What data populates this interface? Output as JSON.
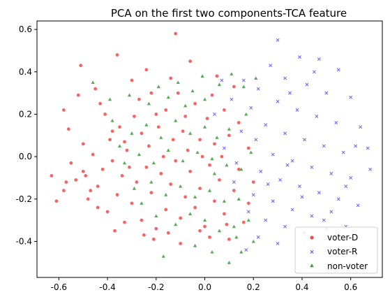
{
  "chart_data": {
    "type": "scatter",
    "title": "PCA on the first two components-TCA feature",
    "xlabel": "",
    "ylabel": "",
    "xlim": [
      -0.69,
      0.73
    ],
    "ylim": [
      -0.57,
      0.64
    ],
    "xticks": [
      "-0.6",
      "-0.4",
      "-0.2",
      "0.0",
      "0.2",
      "0.4",
      "0.6"
    ],
    "yticks": [
      "-0.4",
      "-0.2",
      "0.0",
      "0.2",
      "0.4",
      "0.6"
    ],
    "xtick_values": [
      -0.6,
      -0.4,
      -0.2,
      0.0,
      0.2,
      0.4,
      0.6
    ],
    "ytick_values": [
      -0.4,
      -0.2,
      0.0,
      0.2,
      0.4,
      0.6
    ],
    "grid": false,
    "legend_position": "lower-right",
    "series": [
      {
        "name": "voter-D",
        "marker": "circle",
        "color": "#f44a4a",
        "points": [
          [
            -0.51,
            0.43
          ],
          [
            -0.36,
            0.48
          ],
          [
            -0.12,
            0.58
          ],
          [
            -0.3,
            0.36
          ],
          [
            -0.45,
            0.32
          ],
          [
            -0.58,
            0.22
          ],
          [
            -0.56,
            0.13
          ],
          [
            -0.52,
            0.29
          ],
          [
            -0.41,
            0.2
          ],
          [
            -0.38,
            0.12
          ],
          [
            -0.33,
            0.07
          ],
          [
            -0.29,
            0.19
          ],
          [
            -0.27,
            0.27
          ],
          [
            -0.24,
            0.41
          ],
          [
            -0.22,
            0.3
          ],
          [
            -0.19,
            0.14
          ],
          [
            -0.16,
            0.22
          ],
          [
            -0.14,
            0.37
          ],
          [
            -0.11,
            0.3
          ],
          [
            -0.09,
            0.12
          ],
          [
            -0.06,
            0.45
          ],
          [
            -0.04,
            0.25
          ],
          [
            -0.02,
            0.08
          ],
          [
            0.01,
            0.18
          ],
          [
            0.03,
            0.29
          ],
          [
            0.05,
            0.38
          ],
          [
            0.08,
            0.22
          ],
          [
            0.1,
            0.1
          ],
          [
            0.12,
            0.33
          ],
          [
            -0.63,
            -0.09
          ],
          [
            -0.61,
            -0.21
          ],
          [
            -0.58,
            -0.16
          ],
          [
            -0.55,
            -0.03
          ],
          [
            -0.53,
            -0.11
          ],
          [
            -0.5,
            -0.07
          ],
          [
            -0.48,
            -0.2
          ],
          [
            -0.46,
            0.01
          ],
          [
            -0.44,
            -0.14
          ],
          [
            -0.42,
            -0.06
          ],
          [
            -0.4,
            -0.26
          ],
          [
            -0.38,
            -0.02
          ],
          [
            -0.36,
            -0.18
          ],
          [
            -0.34,
            -0.09
          ],
          [
            -0.32,
            0.03
          ],
          [
            -0.3,
            -0.22
          ],
          [
            -0.28,
            -0.12
          ],
          [
            -0.26,
            -0.3
          ],
          [
            -0.24,
            -0.05
          ],
          [
            -0.22,
            -0.17
          ],
          [
            -0.2,
            -0.34
          ],
          [
            -0.18,
            -0.08
          ],
          [
            -0.16,
            -0.25
          ],
          [
            -0.14,
            -0.13
          ],
          [
            -0.12,
            -0.02
          ],
          [
            -0.1,
            -0.29
          ],
          [
            -0.08,
            -0.19
          ],
          [
            -0.06,
            -0.07
          ],
          [
            -0.04,
            -0.24
          ],
          [
            -0.02,
            -0.15
          ],
          [
            0.0,
            -0.33
          ],
          [
            0.02,
            -0.04
          ],
          [
            0.04,
            -0.21
          ],
          [
            0.06,
            -0.11
          ],
          [
            0.08,
            -0.27
          ],
          [
            0.1,
            -0.39
          ],
          [
            0.12,
            -0.16
          ],
          [
            0.14,
            -0.06
          ],
          [
            0.16,
            -0.31
          ],
          [
            0.18,
            -0.22
          ],
          [
            0.2,
            -0.12
          ],
          [
            -0.44,
            -0.24
          ],
          [
            -0.37,
            -0.35
          ],
          [
            -0.33,
            -0.31
          ],
          [
            -0.25,
            -0.37
          ],
          [
            -0.21,
            -0.39
          ],
          [
            -0.15,
            -0.36
          ],
          [
            -0.1,
            -0.41
          ],
          [
            -0.02,
            -0.35
          ],
          [
            0.02,
            -0.38
          ],
          [
            0.09,
            -0.32
          ],
          [
            -0.57,
            -0.12
          ],
          [
            -0.47,
            -0.16
          ],
          [
            -0.39,
            0.08
          ],
          [
            -0.35,
            0.14
          ],
          [
            -0.31,
            -0.05
          ],
          [
            -0.23,
            0.05
          ],
          [
            -0.17,
            0.0
          ],
          [
            -0.13,
            0.08
          ],
          [
            -0.07,
            0.03
          ],
          [
            -0.01,
            0.0
          ],
          [
            0.04,
            0.06
          ],
          [
            0.07,
            0.0
          ],
          [
            -0.5,
            0.06
          ],
          [
            -0.43,
            0.25
          ],
          [
            -0.26,
            0.11
          ],
          [
            -0.2,
            0.2
          ],
          [
            -0.08,
            0.19
          ],
          [
            0.14,
            0.16
          ],
          [
            0.18,
            0.04
          ],
          [
            -0.49,
            -0.09
          ]
        ]
      },
      {
        "name": "voter-R",
        "marker": "x",
        "color": "#4a4af4",
        "points": [
          [
            0.3,
            0.55
          ],
          [
            0.39,
            0.47
          ],
          [
            0.47,
            0.46
          ],
          [
            0.55,
            0.41
          ],
          [
            0.27,
            0.43
          ],
          [
            0.33,
            0.37
          ],
          [
            0.42,
            0.34
          ],
          [
            0.5,
            0.3
          ],
          [
            0.6,
            0.28
          ],
          [
            0.22,
            0.32
          ],
          [
            0.3,
            0.26
          ],
          [
            0.38,
            0.22
          ],
          [
            0.46,
            0.19
          ],
          [
            0.54,
            0.16
          ],
          [
            0.64,
            0.14
          ],
          [
            0.25,
            0.15
          ],
          [
            0.33,
            0.11
          ],
          [
            0.41,
            0.08
          ],
          [
            0.49,
            0.05
          ],
          [
            0.57,
            0.02
          ],
          [
            0.67,
            0.04
          ],
          [
            0.28,
            0.01
          ],
          [
            0.36,
            -0.02
          ],
          [
            0.44,
            -0.05
          ],
          [
            0.52,
            -0.08
          ],
          [
            0.6,
            -0.1
          ],
          [
            0.68,
            -0.06
          ],
          [
            0.23,
            -0.07
          ],
          [
            0.31,
            -0.11
          ],
          [
            0.39,
            -0.14
          ],
          [
            0.47,
            -0.17
          ],
          [
            0.55,
            -0.2
          ],
          [
            0.63,
            -0.23
          ],
          [
            0.2,
            -0.18
          ],
          [
            0.28,
            -0.21
          ],
          [
            0.36,
            -0.25
          ],
          [
            0.44,
            -0.28
          ],
          [
            0.52,
            -0.26
          ],
          [
            0.25,
            -0.3
          ],
          [
            0.33,
            -0.33
          ],
          [
            0.41,
            -0.36
          ],
          [
            0.49,
            -0.3
          ],
          [
            0.58,
            -0.33
          ],
          [
            0.22,
            -0.38
          ],
          [
            0.3,
            -0.41
          ],
          [
            0.17,
            -0.44
          ],
          [
            0.07,
            0.36
          ],
          [
            0.11,
            0.27
          ],
          [
            0.04,
            0.2
          ],
          [
            0.15,
            0.12
          ],
          [
            0.08,
            0.04
          ],
          [
            0.13,
            -0.03
          ],
          [
            0.19,
            0.23
          ],
          [
            0.16,
            0.36
          ],
          [
            0.21,
            0.08
          ],
          [
            0.35,
            0.3
          ],
          [
            0.45,
            0.4
          ],
          [
            0.62,
            0.05
          ],
          [
            0.58,
            -0.14
          ],
          [
            0.5,
            -0.34
          ],
          [
            0.4,
            -0.19
          ],
          [
            0.34,
            -0.04
          ],
          [
            0.26,
            -0.13
          ],
          [
            0.18,
            -0.26
          ],
          [
            0.12,
            -0.12
          ]
        ]
      },
      {
        "name": "non-voter",
        "marker": "triangle",
        "color": "#3a9a3a",
        "points": [
          [
            -0.46,
            0.35
          ],
          [
            -0.39,
            0.27
          ],
          [
            -0.31,
            0.29
          ],
          [
            -0.23,
            0.25
          ],
          [
            -0.19,
            0.33
          ],
          [
            -0.15,
            0.28
          ],
          [
            -0.11,
            0.35
          ],
          [
            -0.05,
            0.31
          ],
          [
            0.0,
            0.27
          ],
          [
            0.06,
            0.34
          ],
          [
            0.11,
            0.39
          ],
          [
            0.16,
            0.33
          ],
          [
            0.21,
            0.37
          ],
          [
            -0.38,
            0.17
          ],
          [
            -0.3,
            0.11
          ],
          [
            -0.24,
            0.15
          ],
          [
            -0.18,
            0.09
          ],
          [
            -0.12,
            0.17
          ],
          [
            -0.06,
            0.11
          ],
          [
            0.0,
            0.14
          ],
          [
            0.05,
            0.09
          ],
          [
            0.1,
            0.13
          ],
          [
            -0.33,
            -0.03
          ],
          [
            -0.27,
            0.01
          ],
          [
            -0.21,
            -0.03
          ],
          [
            -0.15,
            0.03
          ],
          [
            -0.09,
            -0.02
          ],
          [
            -0.03,
            0.02
          ],
          [
            0.03,
            -0.01
          ],
          [
            0.09,
            -0.04
          ],
          [
            0.15,
            -0.06
          ],
          [
            -0.29,
            -0.15
          ],
          [
            -0.22,
            -0.12
          ],
          [
            -0.16,
            -0.18
          ],
          [
            -0.1,
            -0.14
          ],
          [
            -0.04,
            -0.19
          ],
          [
            0.02,
            -0.16
          ],
          [
            0.08,
            -0.21
          ],
          [
            0.14,
            -0.2
          ],
          [
            -0.2,
            -0.28
          ],
          [
            -0.12,
            -0.32
          ],
          [
            -0.06,
            -0.27
          ],
          [
            0.0,
            -0.3
          ],
          [
            0.06,
            -0.35
          ],
          [
            0.12,
            -0.33
          ],
          [
            0.18,
            -0.3
          ],
          [
            -0.17,
            -0.47
          ],
          [
            -0.04,
            -0.42
          ],
          [
            0.03,
            -0.45
          ],
          [
            0.1,
            -0.5
          ],
          [
            0.15,
            -0.45
          ],
          [
            0.13,
            -0.38
          ],
          [
            0.2,
            -0.4
          ],
          [
            -0.08,
            0.24
          ],
          [
            -0.01,
            0.38
          ],
          [
            0.17,
            0.2
          ],
          [
            0.19,
            0.02
          ],
          [
            -0.26,
            -0.22
          ],
          [
            0.04,
            -0.08
          ],
          [
            -0.35,
            0.05
          ]
        ]
      }
    ]
  }
}
